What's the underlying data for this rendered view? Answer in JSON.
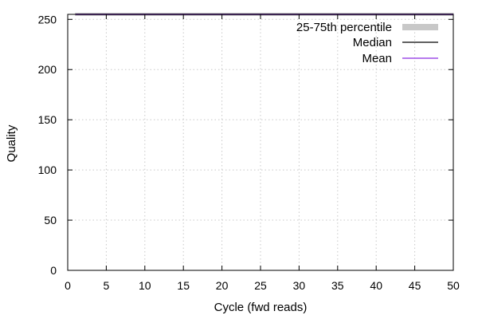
{
  "chart_data": {
    "type": "area",
    "xlabel": "Cycle (fwd reads)",
    "ylabel": "Quality",
    "xlim": [
      0,
      50
    ],
    "ylim": [
      0,
      255
    ],
    "xticks": [
      0,
      5,
      10,
      15,
      20,
      25,
      30,
      35,
      40,
      45,
      50
    ],
    "yticks": [
      0,
      50,
      100,
      150,
      200,
      250
    ],
    "grid": true,
    "legend_position": "top-right",
    "x": [
      1,
      50
    ],
    "series": [
      {
        "name": "25-75th percentile",
        "kind": "band",
        "color": "#c8c8c8",
        "lower": [
          255,
          255
        ],
        "upper": [
          255,
          255
        ]
      },
      {
        "name": "Median",
        "kind": "line",
        "color": "#000000",
        "values": [
          255,
          255
        ]
      },
      {
        "name": "Mean",
        "kind": "line",
        "color": "#8a2be2",
        "values": [
          255,
          255
        ]
      }
    ]
  }
}
